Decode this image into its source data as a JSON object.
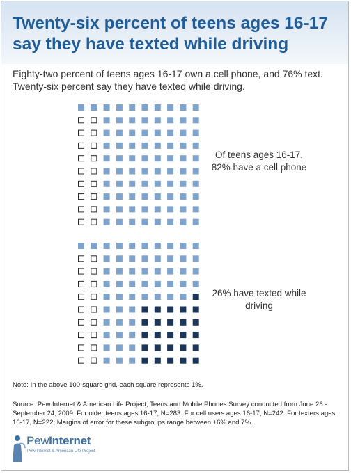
{
  "header": {
    "title": "Twenty-six percent of teens ages 16-17 say they have texted while driving"
  },
  "subtitle": "Eighty-two percent of teens ages 16-17 own a cell phone, and 76% text. Twenty-six percent say they have texted while driving.",
  "colors": {
    "title": "#1f5d9a",
    "light_square": "#7fa3cb",
    "dark_square": "#1d3557",
    "empty_square_border": "#2a2a2a"
  },
  "chart_data": [
    {
      "type": "waffle",
      "grid": [
        10,
        10
      ],
      "unit": "1% per square",
      "categories": [
        "cell phone",
        "no cell phone"
      ],
      "values": [
        82,
        18
      ],
      "label": "Of teens ages 16-17, 82% have a cell phone"
    },
    {
      "type": "waffle",
      "grid": [
        10,
        10
      ],
      "unit": "1% per square",
      "categories": [
        "texted while driving",
        "other cell phone owners",
        "no cell phone"
      ],
      "values": [
        26,
        56,
        18
      ],
      "label": "26% have texted while driving"
    }
  ],
  "captions": {
    "cell_phone": "Of teens ages 16-17, 82% have a cell phone",
    "texted": "26% have texted while driving"
  },
  "note": "Note: In the above 100-square grid, each square represents 1%.",
  "source": "Source: Pew Internet & American Life Project, Teens and Mobile Phones Survey conducted from June 26 - September 24, 2009. For older teens ages 16-17, N=283. For cell users ages 16-17, N=242. For texters ages 16-17, N=222. Margins of error for these subgroups range between ±6% and 7%.",
  "logo": {
    "brand_a": "Pew",
    "brand_b": "Internet",
    "tagline": "Pew Internet & American Life Project"
  }
}
